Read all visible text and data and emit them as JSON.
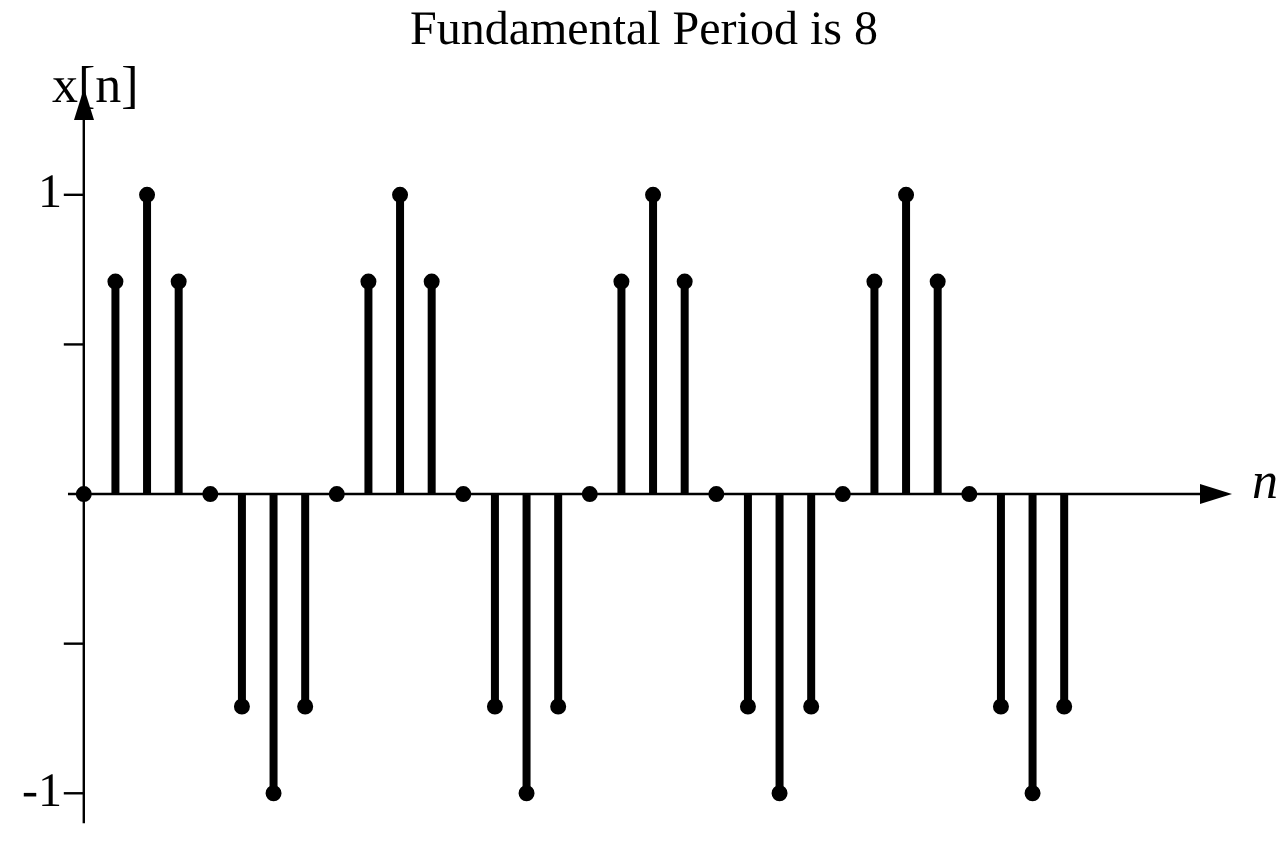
{
  "chart_data": {
    "type": "lollipop",
    "title": "Fundamental Period is 8",
    "xlabel": "n",
    "ylabel": "x[n]",
    "categories": [
      null,
      null,
      null,
      null,
      null,
      null,
      null,
      null,
      null,
      null,
      null,
      null,
      null,
      null,
      null,
      null,
      null,
      null,
      null,
      null,
      null,
      null,
      null,
      null,
      null,
      null,
      null,
      null,
      null,
      null,
      null,
      null
    ],
    "values": [
      0,
      0.71,
      1,
      0.71,
      0,
      -0.71,
      -1,
      -0.71,
      0,
      0.71,
      1,
      0.71,
      0,
      -0.71,
      -1,
      -0.71,
      0,
      0.71,
      1,
      0.71,
      0,
      -0.71,
      -1,
      -0.71,
      0,
      0.71,
      1,
      0.71,
      0,
      -0.71,
      -1,
      -0.71
    ],
    "color": "#000000",
    "marker": "circle",
    "ylim": [
      -1.1,
      1.25
    ],
    "yticks": [
      1,
      {
        "value": 0.5,
        "label": null
      },
      {
        "value": -0.5,
        "label": null
      },
      -1
    ],
    "tick_labels": "y",
    "grid": false,
    "legend": false
  }
}
